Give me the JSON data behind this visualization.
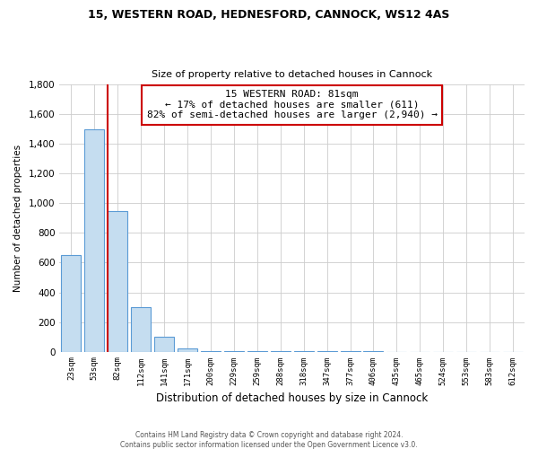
{
  "title1": "15, WESTERN ROAD, HEDNESFORD, CANNOCK, WS12 4AS",
  "title2": "Size of property relative to detached houses in Cannock",
  "xlabel": "Distribution of detached houses by size in Cannock",
  "ylabel": "Number of detached properties",
  "footnote1": "Contains HM Land Registry data © Crown copyright and database right 2024.",
  "footnote2": "Contains public sector information licensed under the Open Government Licence v3.0.",
  "annotation_line1": "15 WESTERN ROAD: 81sqm",
  "annotation_line2": "← 17% of detached houses are smaller (611)",
  "annotation_line3": "82% of semi-detached houses are larger (2,940) →",
  "bar_edge_color": "#5b9bd5",
  "bar_face_color": "#c5ddf0",
  "highlight_color": "#cc0000",
  "background_color": "#ffffff",
  "grid_color": "#cccccc",
  "categories": [
    "23sqm",
    "53sqm",
    "82sqm",
    "112sqm",
    "141sqm",
    "171sqm",
    "200sqm",
    "229sqm",
    "259sqm",
    "288sqm",
    "318sqm",
    "347sqm",
    "377sqm",
    "406sqm",
    "435sqm",
    "465sqm",
    "524sqm",
    "553sqm",
    "583sqm",
    "612sqm"
  ],
  "values": [
    650,
    1500,
    950,
    300,
    100,
    20,
    5,
    3,
    2,
    2,
    1,
    1,
    1,
    1,
    0,
    0,
    0,
    0,
    0,
    0
  ],
  "ylim": [
    0,
    1800
  ],
  "yticks": [
    0,
    200,
    400,
    600,
    800,
    1000,
    1200,
    1400,
    1600,
    1800
  ],
  "property_bar_index": 2,
  "figsize": [
    6.0,
    5.0
  ],
  "dpi": 100
}
